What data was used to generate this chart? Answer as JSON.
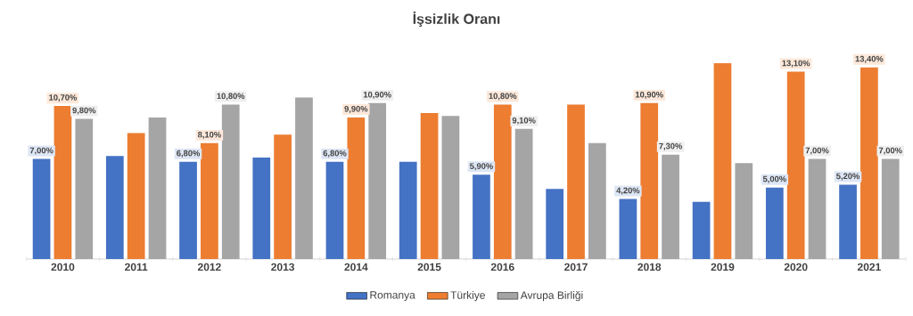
{
  "chart_data": {
    "type": "bar",
    "title": "İşsizlik Oranı",
    "categories": [
      "2010",
      "2011",
      "2012",
      "2013",
      "2014",
      "2015",
      "2016",
      "2017",
      "2018",
      "2019",
      "2020",
      "2021"
    ],
    "series": [
      {
        "name": "Romanya",
        "color": "#4472c4",
        "values": [
          7.0,
          7.2,
          6.8,
          7.1,
          6.8,
          6.8,
          5.9,
          4.9,
          4.2,
          4.0,
          5.0,
          5.2
        ],
        "value_labels": [
          "7,00%",
          null,
          "6,80%",
          null,
          "6,80%",
          null,
          "5,90%",
          null,
          "4,20%",
          null,
          "5,00%",
          "5,20%"
        ]
      },
      {
        "name": "Türkiye",
        "color": "#ed7d31",
        "values": [
          10.7,
          8.8,
          8.1,
          8.7,
          9.9,
          10.2,
          10.8,
          10.8,
          10.9,
          13.7,
          13.1,
          13.4
        ],
        "value_labels": [
          "10,70%",
          null,
          "8,10%",
          null,
          "9,90%",
          null,
          "10,80%",
          null,
          "10,90%",
          null,
          "13,10%",
          "13,40%"
        ]
      },
      {
        "name": "Avrupa Birliği",
        "color": "#a5a5a5",
        "values": [
          9.8,
          9.9,
          10.8,
          11.3,
          10.9,
          10.0,
          9.1,
          8.1,
          7.3,
          6.7,
          7.0,
          7.0
        ],
        "value_labels": [
          "9,80%",
          null,
          "10,80%",
          null,
          "10,90%",
          null,
          "9,10%",
          null,
          "7,30%",
          null,
          "7,00%",
          "7,00%"
        ]
      }
    ],
    "legend": "bottom"
  }
}
